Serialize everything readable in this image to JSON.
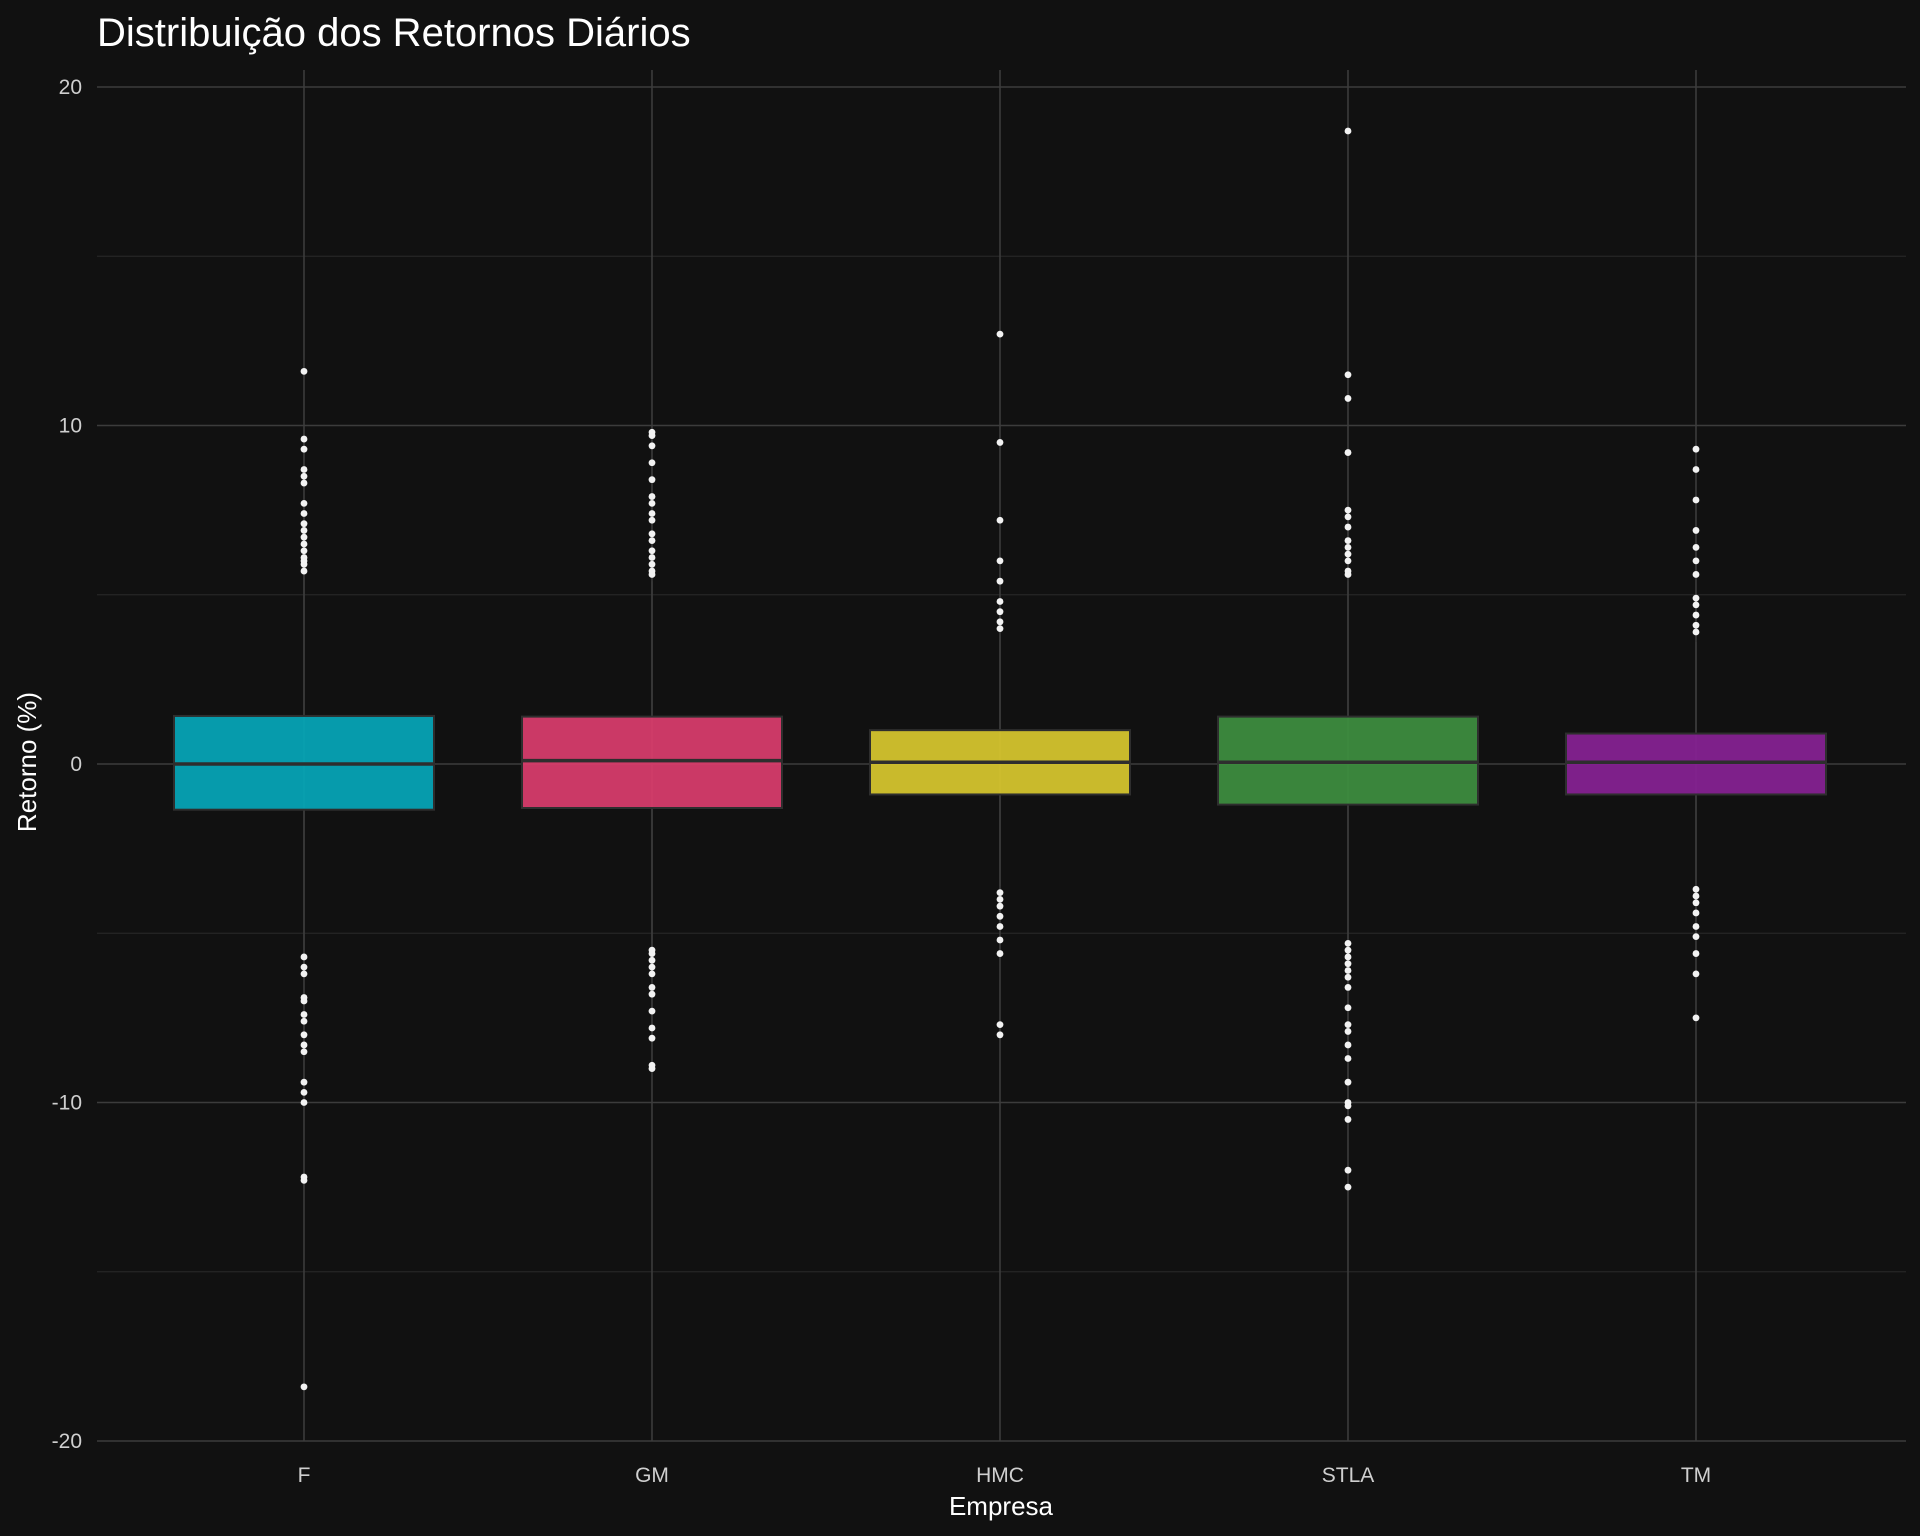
{
  "chart_data": {
    "type": "boxplot",
    "title": "Distribuição dos Retornos Diários",
    "xlabel": "Empresa",
    "ylabel": "Retorno (%)",
    "ylim": [
      -20,
      20
    ],
    "yticks": [
      -20,
      -10,
      0,
      10,
      20
    ],
    "grid": true,
    "legend": "none",
    "categories": [
      "F",
      "GM",
      "HMC",
      "STLA",
      "TM"
    ],
    "series": [
      {
        "category": "F",
        "color": "#06A3B5",
        "q1": -1.35,
        "median": 0.0,
        "q3": 1.42,
        "whisker_low": -5.5,
        "whisker_high": 5.5,
        "outliers": [
          11.6,
          9.6,
          9.3,
          8.7,
          8.5,
          8.3,
          7.7,
          7.4,
          7.1,
          6.9,
          6.7,
          6.5,
          6.3,
          6.1,
          6.0,
          5.9,
          5.7,
          -5.7,
          -6.0,
          -6.2,
          -6.9,
          -7.0,
          -7.4,
          -7.6,
          -8.0,
          -8.3,
          -8.5,
          -9.4,
          -9.7,
          -10.0,
          -12.2,
          -12.3,
          -18.4
        ]
      },
      {
        "category": "GM",
        "color": "#D63C6C",
        "q1": -1.3,
        "median": 0.1,
        "q3": 1.4,
        "whisker_low": -5.3,
        "whisker_high": 5.4,
        "outliers": [
          9.8,
          9.7,
          9.4,
          8.9,
          8.4,
          7.9,
          7.7,
          7.4,
          7.2,
          6.8,
          6.6,
          6.3,
          6.1,
          5.9,
          5.7,
          5.6,
          -5.5,
          -5.6,
          -5.8,
          -6.0,
          -6.2,
          -6.6,
          -6.8,
          -7.3,
          -7.8,
          -8.1,
          -8.9,
          -9.0
        ]
      },
      {
        "category": "HMC",
        "color": "#D4C42E",
        "q1": -0.9,
        "median": 0.05,
        "q3": 1.0,
        "whisker_low": -3.6,
        "whisker_high": 3.8,
        "outliers": [
          12.7,
          9.5,
          7.2,
          6.0,
          5.4,
          4.8,
          4.5,
          4.2,
          4.0,
          -3.8,
          -4.0,
          -4.2,
          -4.5,
          -4.8,
          -5.2,
          -5.6,
          -7.7,
          -8.0
        ]
      },
      {
        "category": "STLA",
        "color": "#3D8C3F",
        "q1": -1.2,
        "median": 0.05,
        "q3": 1.4,
        "whisker_low": -5.2,
        "whisker_high": 5.4,
        "outliers": [
          18.7,
          11.5,
          10.8,
          9.2,
          7.5,
          7.3,
          7.0,
          6.6,
          6.4,
          6.2,
          6.0,
          5.7,
          5.6,
          -5.3,
          -5.5,
          -5.7,
          -5.9,
          -6.1,
          -6.3,
          -6.6,
          -7.2,
          -7.7,
          -7.9,
          -8.3,
          -8.7,
          -9.4,
          -10.0,
          -10.1,
          -10.5,
          -12.0,
          -12.5
        ]
      },
      {
        "category": "TM",
        "color": "#852291",
        "q1": -0.9,
        "median": 0.05,
        "q3": 0.9,
        "whisker_low": -3.5,
        "whisker_high": 3.6,
        "outliers": [
          9.3,
          8.7,
          7.8,
          6.9,
          6.4,
          6.0,
          5.6,
          4.9,
          4.7,
          4.4,
          4.1,
          3.9,
          -3.7,
          -3.9,
          -4.1,
          -4.4,
          -4.8,
          -5.1,
          -5.6,
          -6.2,
          -7.5
        ]
      }
    ]
  }
}
